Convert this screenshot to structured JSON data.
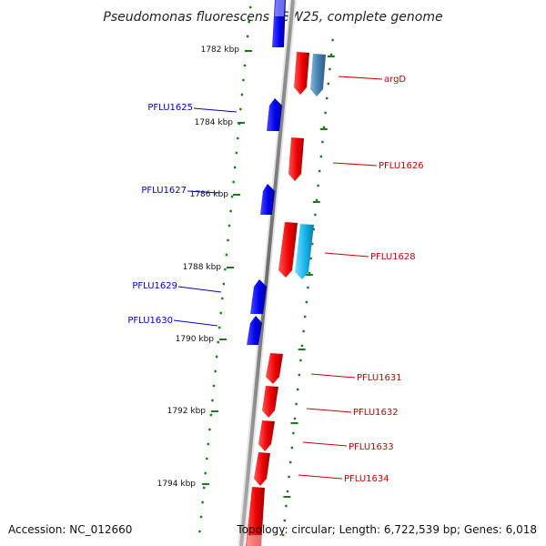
{
  "map": {
    "title": "Pseudomonas fluorescens SBW25, complete genome",
    "accession": "Accession: NC_012660",
    "topology": "Topology: circular; Length: 6,722,539 bp; Genes: 6,018",
    "colors": {
      "forward": "#0000ee",
      "reverse": "#ee0000",
      "steelblue": "#4682b4",
      "cyan": "#1ab8f0",
      "backbone": "#808080",
      "tick": "#1a7a1a",
      "forward_label": "#0000cc",
      "reverse_label": "#cc0000"
    }
  },
  "ticks": [
    {
      "label": "1782 kbp"
    },
    {
      "label": "1784 kbp"
    },
    {
      "label": "1786 kbp"
    },
    {
      "label": "1788 kbp"
    },
    {
      "label": "1790 kbp"
    },
    {
      "label": "1792 kbp"
    },
    {
      "label": "1794 kbp"
    }
  ],
  "genes": {
    "left": [
      {
        "name": "PFLU1625"
      },
      {
        "name": "PFLU1627"
      },
      {
        "name": "PFLU1629"
      },
      {
        "name": "PFLU1630"
      }
    ],
    "right": [
      {
        "name": "argD"
      },
      {
        "name": "PFLU1626"
      },
      {
        "name": "PFLU1628"
      },
      {
        "name": "PFLU1631"
      },
      {
        "name": "PFLU1632"
      },
      {
        "name": "PFLU1633"
      },
      {
        "name": "PFLU1634"
      }
    ]
  }
}
